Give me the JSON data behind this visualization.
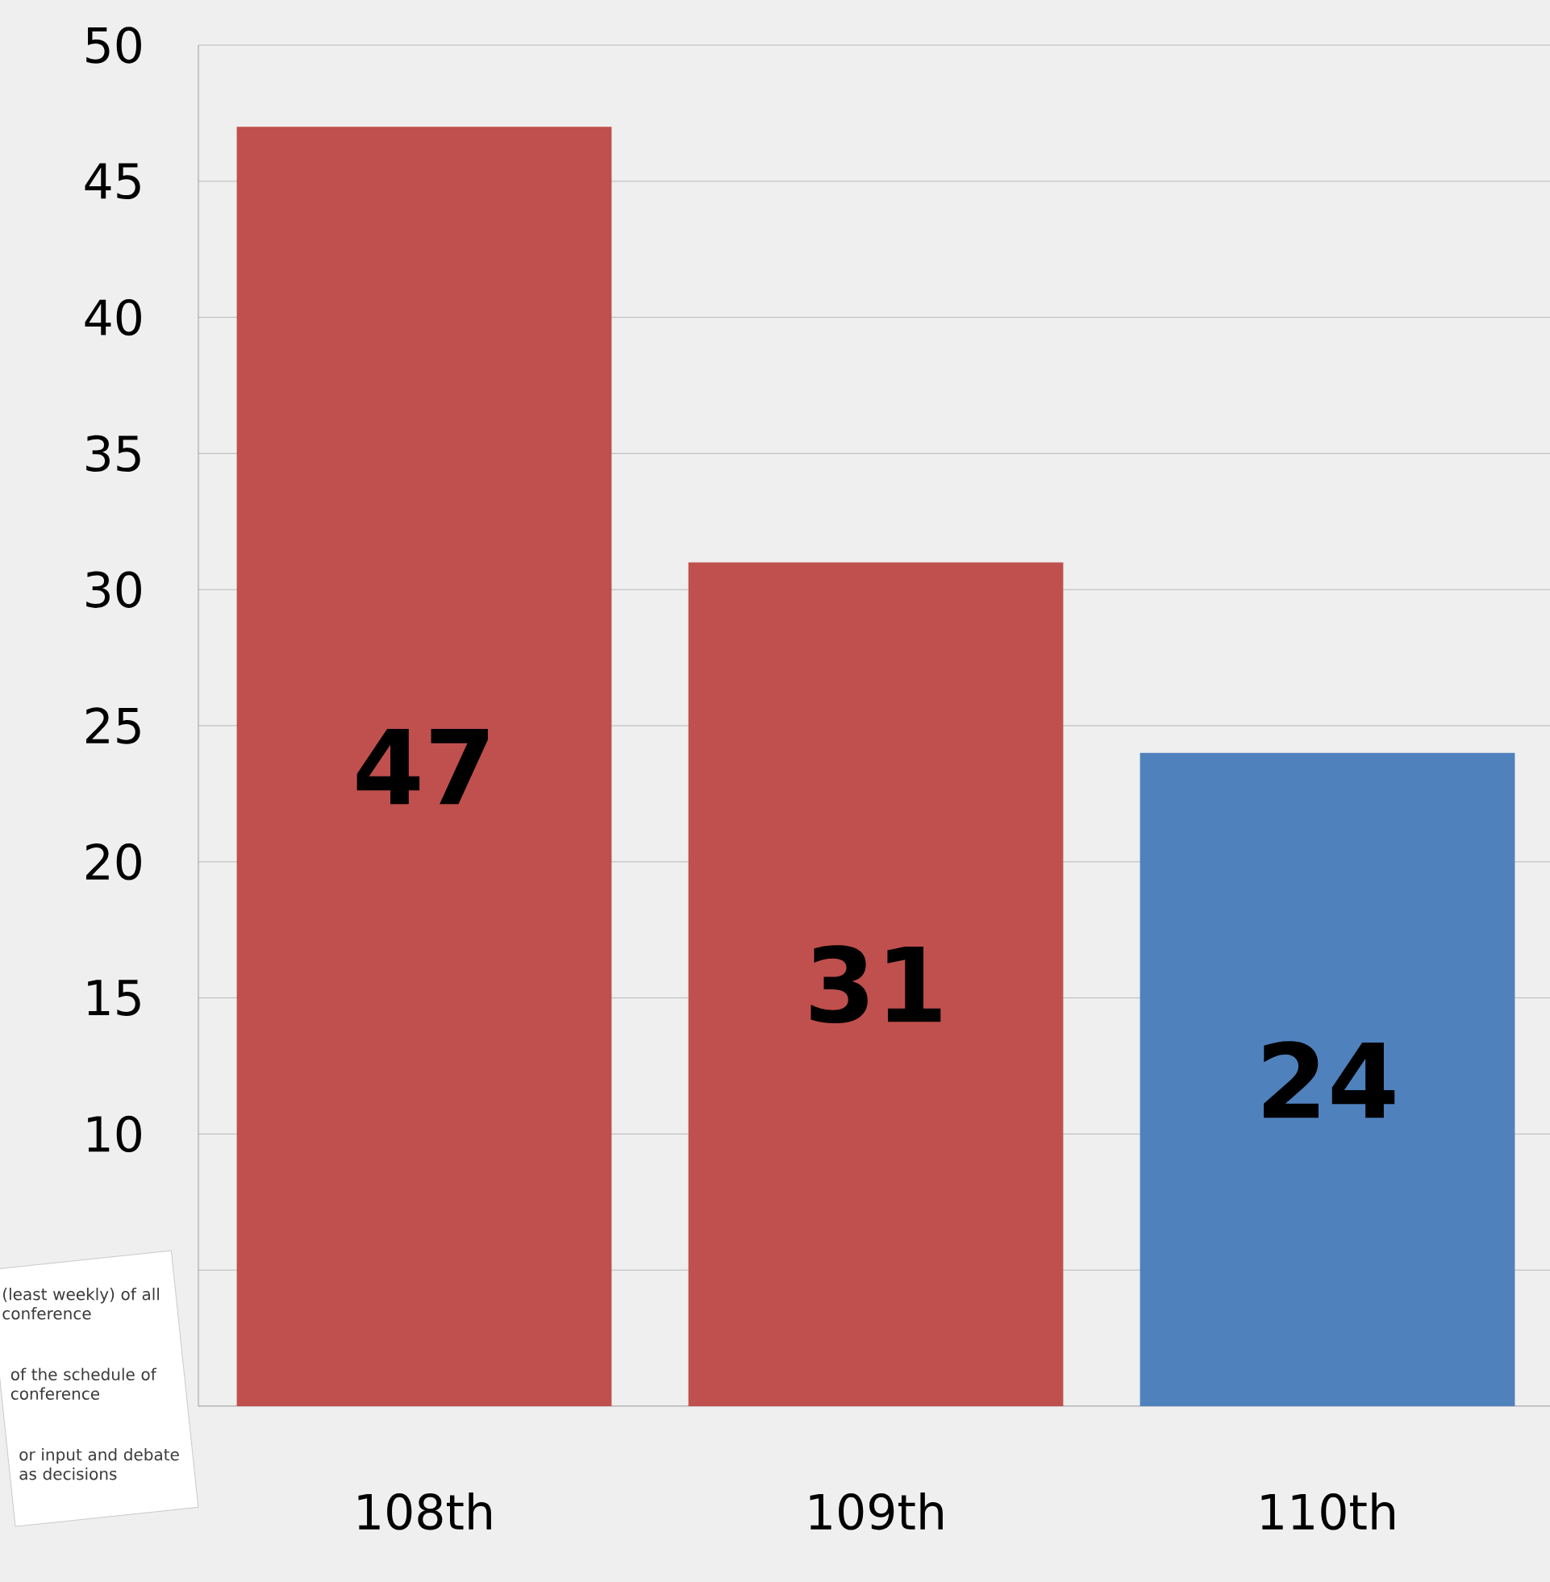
{
  "chart_data": {
    "type": "bar",
    "categories": [
      "108th",
      "109th",
      "110th"
    ],
    "values": [
      47,
      31,
      24
    ],
    "colors": [
      "#c0504d",
      "#c0504d",
      "#4f81bd"
    ],
    "ylim": [
      0,
      50
    ],
    "yticks": [
      {
        "value": 0,
        "label": null
      },
      {
        "value": 5,
        "label": null
      },
      10,
      15,
      20,
      25,
      30,
      35,
      40,
      45,
      50
    ],
    "grid": "y",
    "data_labels": true,
    "annotations": [
      "(least weekly) of all conference",
      "of the schedule of conference",
      "or input and debate as decisions"
    ]
  }
}
